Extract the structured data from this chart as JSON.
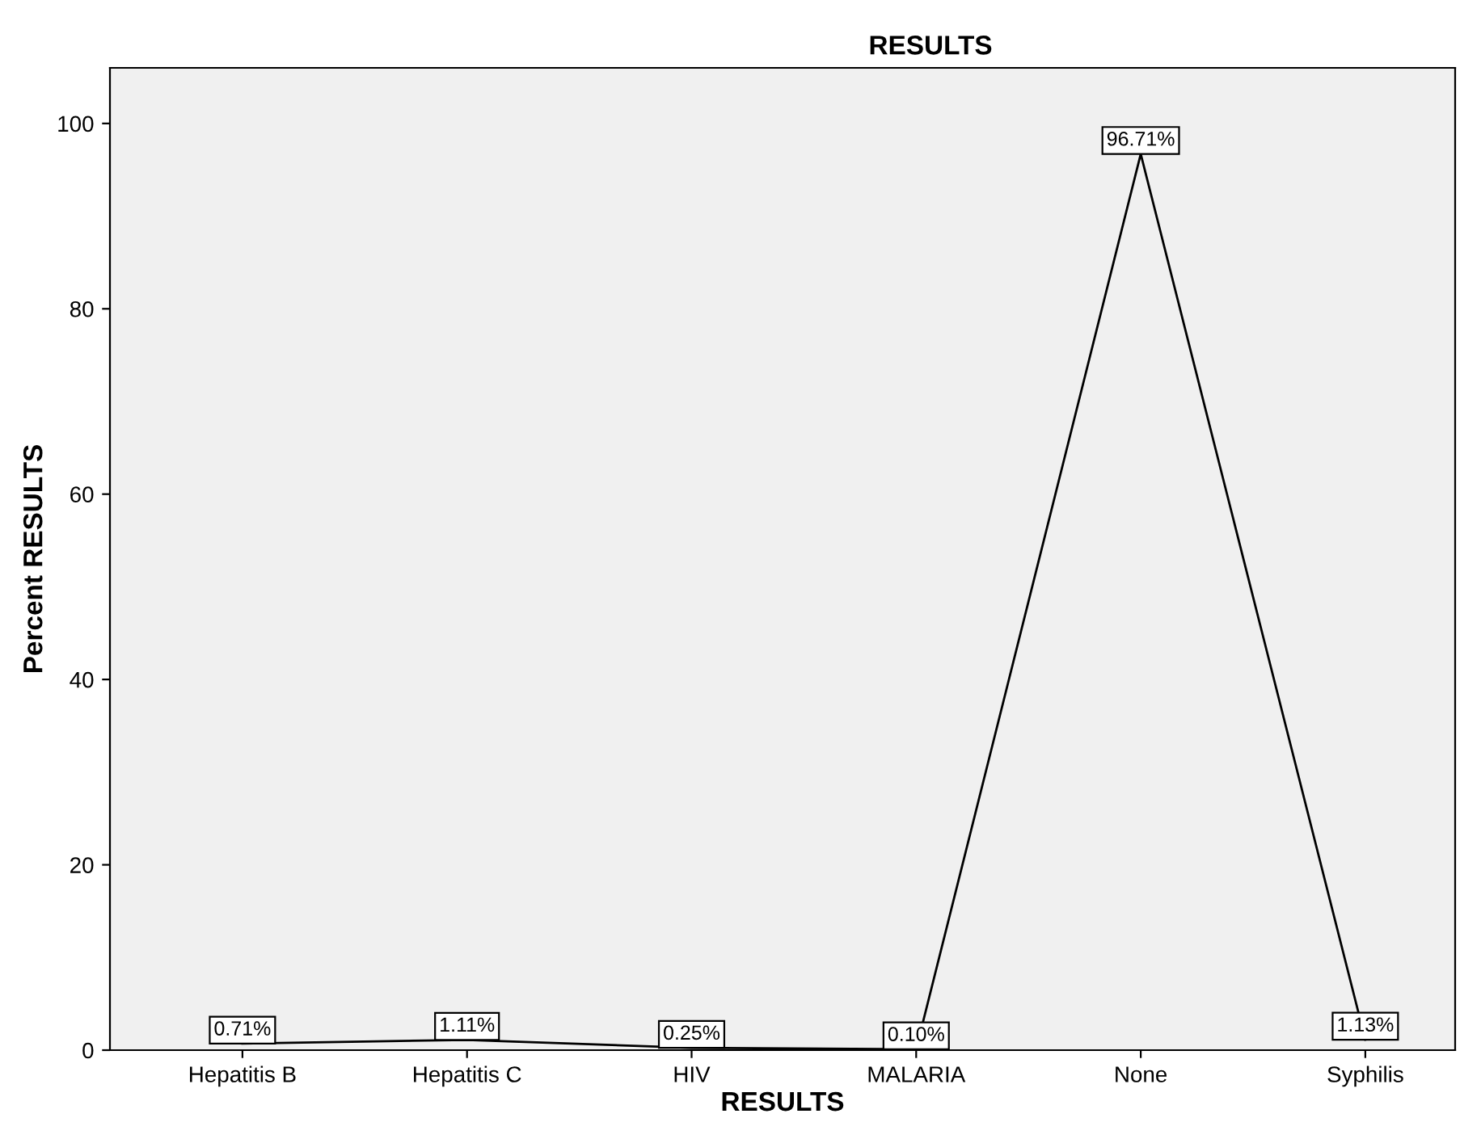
{
  "chart_data": {
    "type": "line",
    "title": "RESULTS",
    "xlabel": "RESULTS",
    "ylabel": "Percent RESULTS",
    "categories": [
      "Hepatitis B",
      "Hepatitis C",
      "HIV",
      "MALARIA",
      "None",
      "Syphilis"
    ],
    "series": [
      {
        "color": "#000000",
        "values": [
          0.71,
          1.11,
          0.25,
          0.1,
          96.71,
          1.13
        ],
        "value_labels": [
          "0.71%",
          "1.11%",
          "0.25%",
          "0.10%",
          "96.71%",
          "1.13%"
        ]
      }
    ],
    "ylim": [
      0,
      106
    ],
    "yticks": [
      0,
      20,
      40,
      60,
      80,
      100
    ],
    "grid": false,
    "legend": false,
    "marker": "none",
    "line_style": "solid"
  }
}
